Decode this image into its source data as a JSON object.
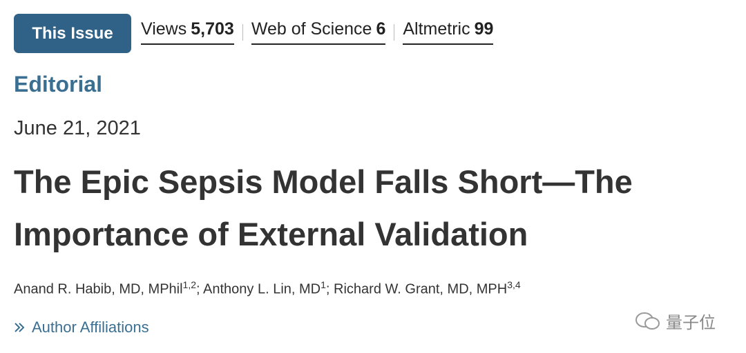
{
  "header": {
    "button": "This Issue",
    "metrics": [
      {
        "label": "Views",
        "value": "5,703"
      },
      {
        "label": "Web of Science",
        "value": "6"
      },
      {
        "label": "Altmetric",
        "value": "99"
      }
    ]
  },
  "article": {
    "section": "Editorial",
    "date": "June 21, 2021",
    "title": "The Epic Sepsis Model Falls Short—The Importance of External Validation",
    "authors": [
      {
        "name": "Anand R. Habib, MD, MPhil",
        "affiliations": "1,2"
      },
      {
        "name": "Anthony L. Lin, MD",
        "affiliations": "1"
      },
      {
        "name": "Richard W. Grant, MD, MPH",
        "affiliations": "3,4"
      }
    ],
    "author_separator": "; ",
    "affiliations_link": "Author Affiliations"
  },
  "watermark": "量子位"
}
